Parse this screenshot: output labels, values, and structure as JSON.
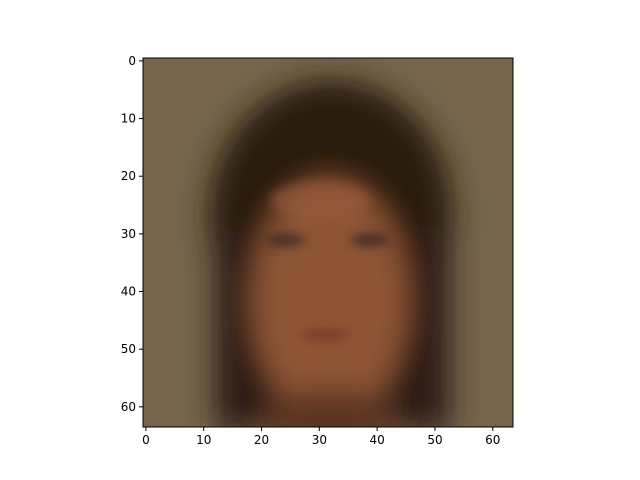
{
  "chart_data": {
    "type": "image",
    "xlim": [
      -0.5,
      63.5
    ],
    "ylim": [
      63.5,
      -0.5
    ],
    "xticks": [
      0,
      10,
      20,
      30,
      40,
      50,
      60
    ],
    "yticks": [
      0,
      10,
      20,
      30,
      40,
      50,
      60
    ]
  }
}
